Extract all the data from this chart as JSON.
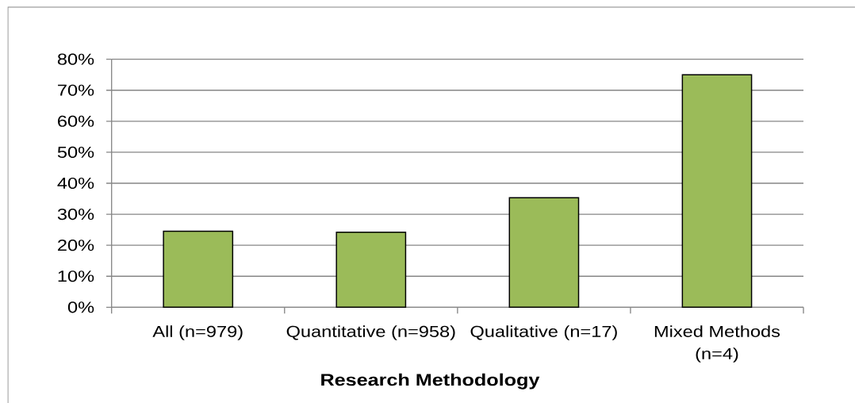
{
  "chart_data": {
    "type": "bar",
    "xlabel": "Research Methodology",
    "categories": [
      "All (n=979)",
      "Quantitative (n=958)",
      "Qualitative (n=17)",
      "Mixed Methods (n=4)"
    ],
    "values": [
      24.5,
      24.2,
      35.3,
      75
    ],
    "color": "#9bbb59",
    "ylim": [
      0,
      80
    ],
    "yticks": [
      {
        "value": 0,
        "label": "0%"
      },
      {
        "value": 10,
        "label": "10%"
      },
      {
        "value": 20,
        "label": "20%"
      },
      {
        "value": 30,
        "label": "30%"
      },
      {
        "value": 40,
        "label": "40%"
      },
      {
        "value": 50,
        "label": "50%"
      },
      {
        "value": 60,
        "label": "60%"
      },
      {
        "value": 70,
        "label": "70%"
      },
      {
        "value": 80,
        "label": "80%"
      }
    ],
    "grid": "y"
  }
}
